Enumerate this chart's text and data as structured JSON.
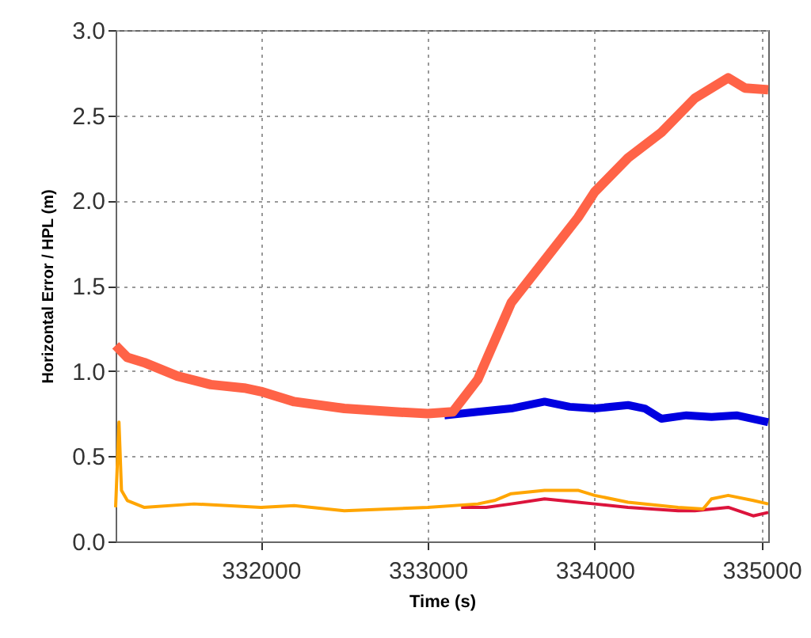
{
  "chart_data": {
    "type": "line",
    "xlabel": "Time (s)",
    "ylabel": "Horizontal Error / HPL (m)",
    "xlim": [
      331130,
      335040
    ],
    "ylim": [
      0,
      3
    ],
    "xticks": [
      332000,
      333000,
      334000,
      335000
    ],
    "yticks": [
      {
        "value": 0,
        "label": "0.0"
      },
      {
        "value": 0.5,
        "label": "0.5"
      },
      {
        "value": 1,
        "label": "1.0"
      },
      {
        "value": 1.5,
        "label": "1.5"
      },
      {
        "value": 2,
        "label": "2.0"
      },
      {
        "value": 2.5,
        "label": "2.5"
      },
      {
        "value": 3,
        "label": "3.0"
      }
    ],
    "grid": true,
    "marker": "none",
    "line_style": "solid",
    "series": [
      {
        "color": "#0000e0",
        "x": [
          333100,
          333300,
          333500,
          333700,
          333850,
          334000,
          334200,
          334300,
          334400,
          334550,
          334700,
          334850,
          335040
        ],
        "values": [
          0.74,
          0.76,
          0.78,
          0.82,
          0.79,
          0.78,
          0.8,
          0.78,
          0.72,
          0.74,
          0.73,
          0.74,
          0.7
        ]
      },
      {
        "color": "#ff6347",
        "x": [
          331130,
          331200,
          331300,
          331500,
          331700,
          331900,
          332000,
          332100,
          332200,
          332500,
          332800,
          333000,
          333150,
          333300,
          333500,
          333700,
          333900,
          334000,
          334200,
          334400,
          334600,
          334800,
          334900,
          335040
        ],
        "values": [
          1.15,
          1.08,
          1.05,
          0.97,
          0.92,
          0.9,
          0.88,
          0.85,
          0.82,
          0.78,
          0.76,
          0.75,
          0.76,
          0.95,
          1.4,
          1.65,
          1.9,
          2.05,
          2.25,
          2.4,
          2.6,
          2.72,
          2.66,
          2.65
        ]
      },
      {
        "color": "#dc143c",
        "x": [
          333200,
          333350,
          333500,
          333700,
          333900,
          334000,
          334200,
          334500,
          334600,
          334800,
          334950,
          335040
        ],
        "values": [
          0.2,
          0.2,
          0.22,
          0.25,
          0.23,
          0.22,
          0.2,
          0.18,
          0.18,
          0.2,
          0.15,
          0.17
        ]
      },
      {
        "color": "#ffa500",
        "x": [
          331130,
          331150,
          331165,
          331200,
          331300,
          331600,
          332000,
          332200,
          332500,
          333000,
          333300,
          333400,
          333500,
          333700,
          333900,
          334000,
          334200,
          334500,
          334650,
          334700,
          334800,
          334950,
          335040
        ],
        "values": [
          0.2,
          0.7,
          0.3,
          0.24,
          0.2,
          0.22,
          0.2,
          0.21,
          0.18,
          0.2,
          0.22,
          0.24,
          0.28,
          0.3,
          0.3,
          0.27,
          0.23,
          0.2,
          0.19,
          0.25,
          0.27,
          0.24,
          0.22
        ]
      }
    ]
  }
}
